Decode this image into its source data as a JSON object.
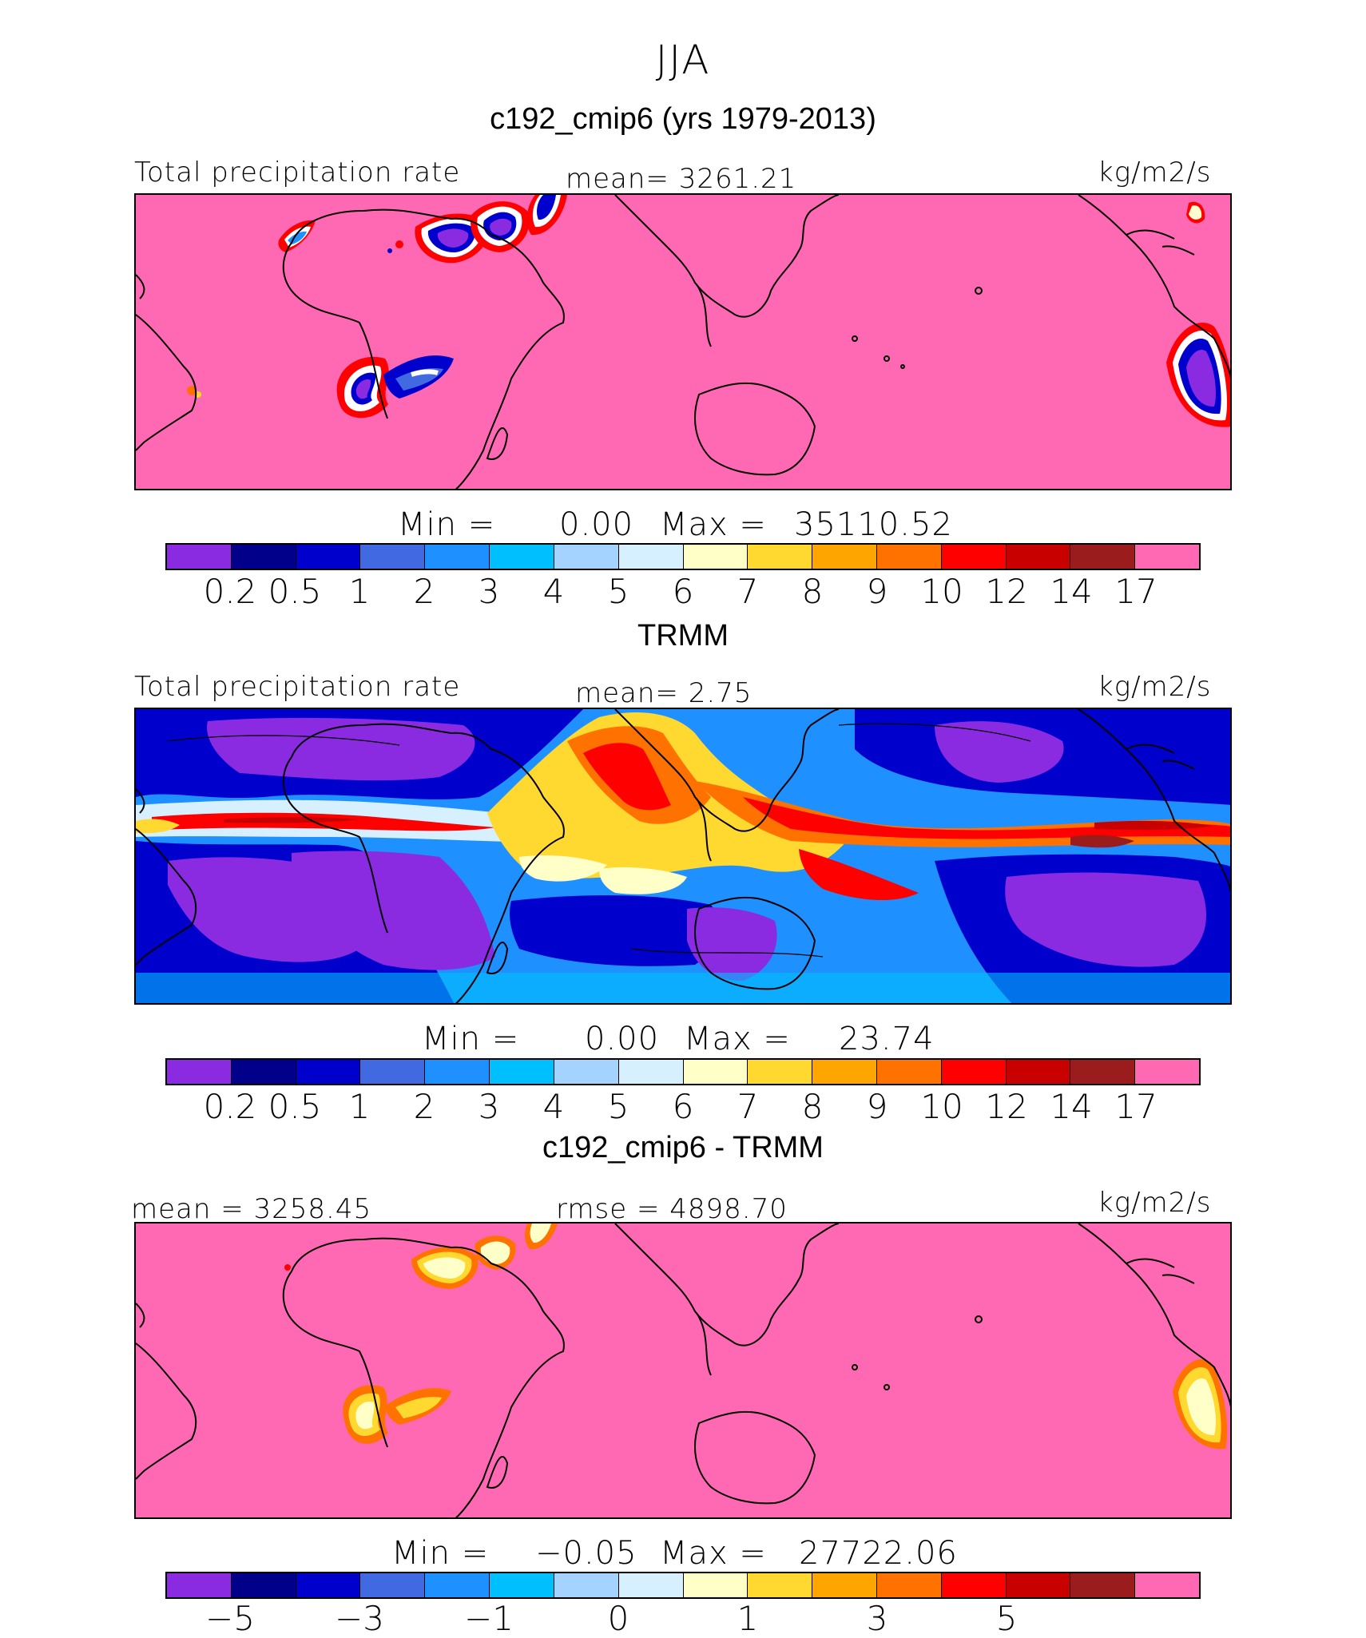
{
  "title": "JJA",
  "colors": [
    "#8a2be2",
    "#00008b",
    "#0000cd",
    "#4169e1",
    "#1e90ff",
    "#00bfff",
    "#a4d3ff",
    "#d7f0ff",
    "#ffffc8",
    "#ffd92f",
    "#ffa500",
    "#ff7200",
    "#ff0000",
    "#c80000",
    "#9b1c1c",
    "#ff69b4"
  ],
  "panels": [
    {
      "title": "c192_cmip6 (yrs 1979-2013)",
      "left_label": "Total precipitation rate",
      "center_label": "mean=  3261.21",
      "units": "kg/m2/s",
      "min_label": "Min  =",
      "min_value": "0.00",
      "max_label": "Max  =",
      "max_value": "35110.52",
      "ticks": [
        "0.2",
        "0.5",
        "1",
        "2",
        "3",
        "4",
        "5",
        "6",
        "7",
        "8",
        "9",
        "10",
        "12",
        "14",
        "17"
      ]
    },
    {
      "title": "TRMM",
      "left_label": "Total precipitation rate",
      "center_label": "mean=    2.75",
      "units": "kg/m2/s",
      "min_label": "Min  =",
      "min_value": "0.00",
      "max_label": "Max  =",
      "max_value": "23.74",
      "ticks": [
        "0.2",
        "0.5",
        "1",
        "2",
        "3",
        "4",
        "5",
        "6",
        "7",
        "8",
        "9",
        "10",
        "12",
        "14",
        "17"
      ]
    },
    {
      "title": "c192_cmip6 - TRMM",
      "left_label": "mean = 3258.45",
      "center_label": "rmse = 4898.70",
      "units": "kg/m2/s",
      "min_label": "Min  =",
      "min_value": "−0.05",
      "max_label": "Max  =",
      "max_value": "27722.06",
      "ticks": [
        "−5",
        "−3",
        "−1",
        "0",
        "1",
        "3",
        "5"
      ]
    }
  ]
}
